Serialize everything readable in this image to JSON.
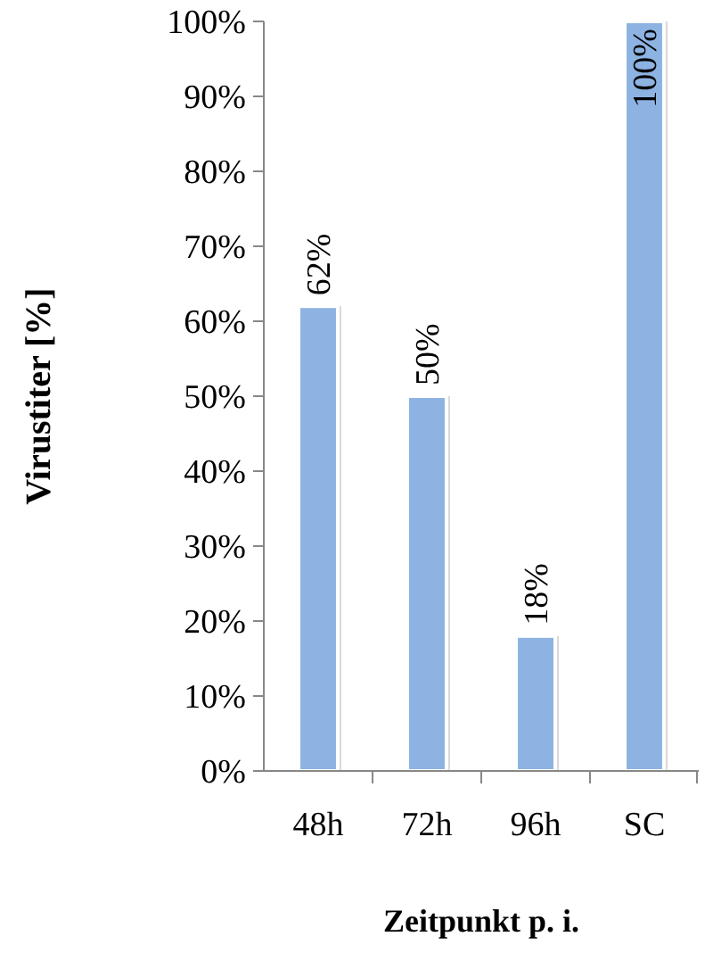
{
  "chart_data": {
    "type": "bar",
    "xlabel": "Zeitpunkt p. i.",
    "ylabel": "Virustiter [%]",
    "categories": [
      "48h",
      "72h",
      "96h",
      "SC"
    ],
    "values": [
      62,
      50,
      18,
      100
    ],
    "value_labels": [
      "62%",
      "50%",
      "18%",
      "100%"
    ],
    "color": "#8db3e2",
    "ylim": [
      0,
      100
    ],
    "yticks": [
      {
        "value": 0,
        "label": "0%"
      },
      {
        "value": 10,
        "label": "10%"
      },
      {
        "value": 20,
        "label": "20%"
      },
      {
        "value": 30,
        "label": "30%"
      },
      {
        "value": 40,
        "label": "40%"
      },
      {
        "value": 50,
        "label": "50%"
      },
      {
        "value": 60,
        "label": "60%"
      },
      {
        "value": 70,
        "label": "70%"
      },
      {
        "value": 80,
        "label": "80%"
      },
      {
        "value": 90,
        "label": "90%"
      },
      {
        "value": 100,
        "label": "100%"
      }
    ],
    "grid": false
  }
}
